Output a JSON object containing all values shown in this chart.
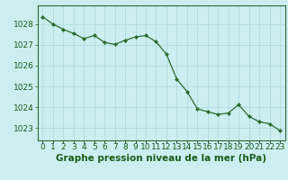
{
  "x": [
    0,
    1,
    2,
    3,
    4,
    5,
    6,
    7,
    8,
    9,
    10,
    11,
    12,
    13,
    14,
    15,
    16,
    17,
    18,
    19,
    20,
    21,
    22,
    23
  ],
  "y": [
    1028.35,
    1028.0,
    1027.75,
    1027.55,
    1027.3,
    1027.45,
    1027.12,
    1027.02,
    1027.22,
    1027.38,
    1027.45,
    1027.15,
    1026.55,
    1025.35,
    1024.75,
    1023.92,
    1023.78,
    1023.65,
    1023.72,
    1024.12,
    1023.55,
    1023.3,
    1023.2,
    1022.87
  ],
  "line_color": "#2d6a2d",
  "marker_color": "#2d6a2d",
  "bg_color": "#cceef0",
  "grid_color": "#aad8da",
  "xlabel_ticks": [
    "0",
    "1",
    "2",
    "3",
    "4",
    "5",
    "6",
    "7",
    "8",
    "9",
    "10",
    "11",
    "12",
    "13",
    "14",
    "15",
    "16",
    "17",
    "18",
    "19",
    "20",
    "21",
    "22",
    "23"
  ],
  "title": "Graphe pression niveau de la mer (hPa)",
  "ylim": [
    1022.4,
    1028.9
  ],
  "yticks": [
    1023,
    1024,
    1025,
    1026,
    1027,
    1028
  ],
  "title_color": "#1a5c1a",
  "axis_color": "#1a5c1a",
  "title_fontsize": 7.5,
  "tick_fontsize": 6.5,
  "border_color": "#2d6a2d"
}
